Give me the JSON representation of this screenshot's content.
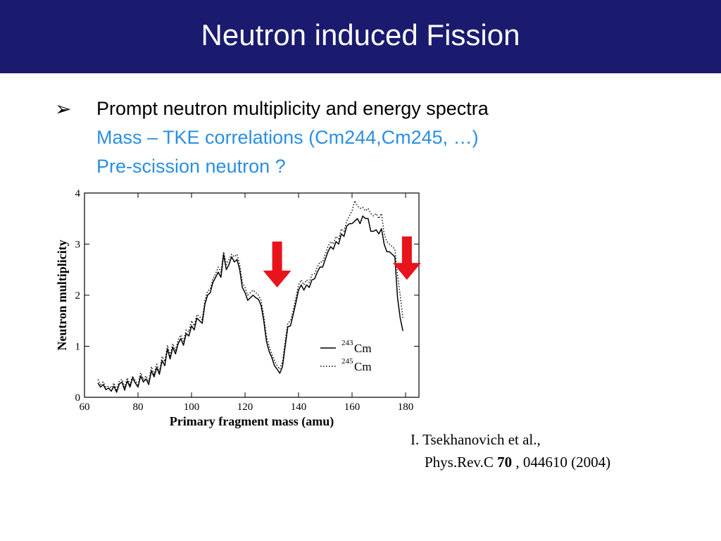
{
  "slide": {
    "title": "Neutron induced Fission",
    "bullet_symbol": "➢",
    "lines": [
      "Prompt neutron multiplicity and energy spectra",
      "Mass – TKE correlations (Cm244,Cm245, …)",
      "Pre-scission neutron ?"
    ],
    "colors": {
      "header_bg": "#1a1a6e",
      "highlight_text": "#2a8fe0",
      "arrow": "#e8141c"
    }
  },
  "citation": {
    "line1": "I. Tsekhanovich et al.,",
    "journal": "Phys.Rev.C",
    "volume": "70",
    "rest": ", 044610 (2004)"
  },
  "chart_data": {
    "type": "line",
    "xlabel": "Primary fragment mass (amu)",
    "ylabel": "Neutron multiplicity",
    "xlim": [
      60,
      185
    ],
    "ylim": [
      0,
      4
    ],
    "x_ticks": [
      "60",
      "80",
      "100",
      "120",
      "140",
      "160",
      "180"
    ],
    "y_ticks": [
      "0",
      "1",
      "2",
      "3",
      "4"
    ],
    "grid": false,
    "legend_position": "lower-right",
    "series": [
      {
        "name_sup": "243",
        "name": "Cm",
        "style": "solid",
        "x": [
          65,
          66,
          67,
          68,
          69,
          70,
          71,
          72,
          73,
          74,
          75,
          76,
          77,
          78,
          79,
          80,
          81,
          82,
          83,
          84,
          85,
          86,
          87,
          88,
          89,
          90,
          91,
          92,
          93,
          94,
          95,
          96,
          97,
          98,
          99,
          100,
          101,
          102,
          103,
          104,
          105,
          106,
          107,
          108,
          109,
          110,
          111,
          112,
          113,
          114,
          115,
          116,
          117,
          118,
          119,
          120,
          121,
          122,
          123,
          124,
          125,
          126,
          127,
          128,
          129,
          130,
          131,
          132,
          133,
          134,
          135,
          136,
          137,
          138,
          139,
          140,
          141,
          142,
          143,
          144,
          145,
          146,
          147,
          148,
          149,
          150,
          151,
          152,
          153,
          154,
          155,
          156,
          157,
          158,
          159,
          160,
          161,
          162,
          163,
          164,
          165,
          166,
          167,
          168,
          169,
          170,
          171,
          172,
          173,
          174,
          175,
          176,
          177,
          178,
          179
        ],
        "values": [
          0.28,
          0.2,
          0.25,
          0.15,
          0.18,
          0.12,
          0.22,
          0.1,
          0.26,
          0.3,
          0.14,
          0.32,
          0.2,
          0.38,
          0.28,
          0.2,
          0.42,
          0.3,
          0.36,
          0.25,
          0.52,
          0.4,
          0.58,
          0.45,
          0.72,
          0.62,
          0.95,
          0.75,
          0.98,
          0.85,
          1.05,
          1.15,
          1.02,
          1.25,
          1.2,
          1.4,
          1.32,
          1.55,
          1.5,
          1.45,
          1.82,
          2.0,
          2.05,
          2.25,
          2.35,
          2.45,
          2.35,
          2.8,
          2.5,
          2.6,
          2.75,
          2.65,
          2.7,
          2.5,
          2.15,
          2.05,
          1.9,
          1.95,
          2.0,
          1.95,
          1.92,
          1.8,
          1.5,
          1.1,
          0.9,
          0.78,
          0.62,
          0.55,
          0.47,
          0.6,
          1.0,
          1.38,
          1.4,
          1.62,
          1.85,
          2.1,
          2.2,
          2.1,
          2.2,
          2.15,
          2.3,
          2.32,
          2.45,
          2.55,
          2.55,
          2.7,
          2.85,
          2.95,
          2.9,
          3.05,
          3.0,
          3.2,
          3.15,
          3.35,
          3.4,
          3.4,
          3.45,
          3.5,
          3.4,
          3.55,
          3.5,
          3.5,
          3.25,
          3.25,
          3.28,
          3.2,
          3.3,
          3.0,
          2.85,
          2.85,
          2.8,
          2.75,
          1.95,
          1.55,
          1.3
        ]
      },
      {
        "name_sup": "245",
        "name": "Cm",
        "style": "dotted",
        "x": [
          65,
          66,
          67,
          68,
          69,
          70,
          71,
          72,
          73,
          74,
          75,
          76,
          77,
          78,
          79,
          80,
          81,
          82,
          83,
          84,
          85,
          86,
          87,
          88,
          89,
          90,
          91,
          92,
          93,
          94,
          95,
          96,
          97,
          98,
          99,
          100,
          101,
          102,
          103,
          104,
          105,
          106,
          107,
          108,
          109,
          110,
          111,
          112,
          113,
          114,
          115,
          116,
          117,
          118,
          119,
          120,
          121,
          122,
          123,
          124,
          125,
          126,
          127,
          128,
          129,
          130,
          131,
          132,
          133,
          134,
          135,
          136,
          137,
          138,
          139,
          140,
          141,
          142,
          143,
          144,
          145,
          146,
          147,
          148,
          149,
          150,
          151,
          152,
          153,
          154,
          155,
          156,
          157,
          158,
          159,
          160,
          161,
          162,
          163,
          164,
          165,
          166,
          167,
          168,
          169,
          170,
          171,
          172,
          173,
          174,
          175,
          176,
          177,
          178,
          179
        ],
        "values": [
          0.35,
          0.25,
          0.3,
          0.2,
          0.22,
          0.18,
          0.28,
          0.15,
          0.32,
          0.35,
          0.2,
          0.38,
          0.25,
          0.42,
          0.32,
          0.25,
          0.48,
          0.35,
          0.42,
          0.3,
          0.6,
          0.45,
          0.65,
          0.5,
          0.8,
          0.7,
          1.02,
          0.82,
          1.05,
          0.92,
          1.12,
          1.22,
          1.1,
          1.32,
          1.28,
          1.5,
          1.4,
          1.62,
          1.58,
          1.52,
          1.9,
          2.08,
          2.12,
          2.32,
          2.42,
          2.55,
          2.45,
          2.85,
          2.6,
          2.7,
          2.8,
          2.75,
          2.8,
          2.6,
          2.25,
          2.15,
          2.0,
          2.05,
          2.1,
          2.05,
          2.0,
          1.9,
          1.6,
          1.2,
          1.0,
          0.85,
          0.72,
          0.62,
          0.55,
          0.7,
          1.1,
          1.45,
          1.5,
          1.7,
          1.95,
          2.2,
          2.3,
          2.2,
          2.3,
          2.25,
          2.4,
          2.42,
          2.55,
          2.65,
          2.65,
          2.8,
          2.95,
          3.05,
          3.0,
          3.15,
          3.1,
          3.3,
          3.25,
          3.45,
          3.55,
          3.65,
          3.85,
          3.75,
          3.7,
          3.72,
          3.65,
          3.7,
          3.6,
          3.55,
          3.6,
          3.5,
          3.6,
          3.2,
          3.05,
          3.0,
          2.95,
          2.9,
          2.4,
          2.0,
          1.55
        ]
      }
    ],
    "annotations": [
      {
        "type": "down-arrow",
        "x": 132,
        "y_top": 3.05,
        "y_bottom": 2.15
      },
      {
        "type": "down-arrow",
        "x": 180.5,
        "y_top": 3.15,
        "y_bottom": 2.3
      }
    ]
  }
}
